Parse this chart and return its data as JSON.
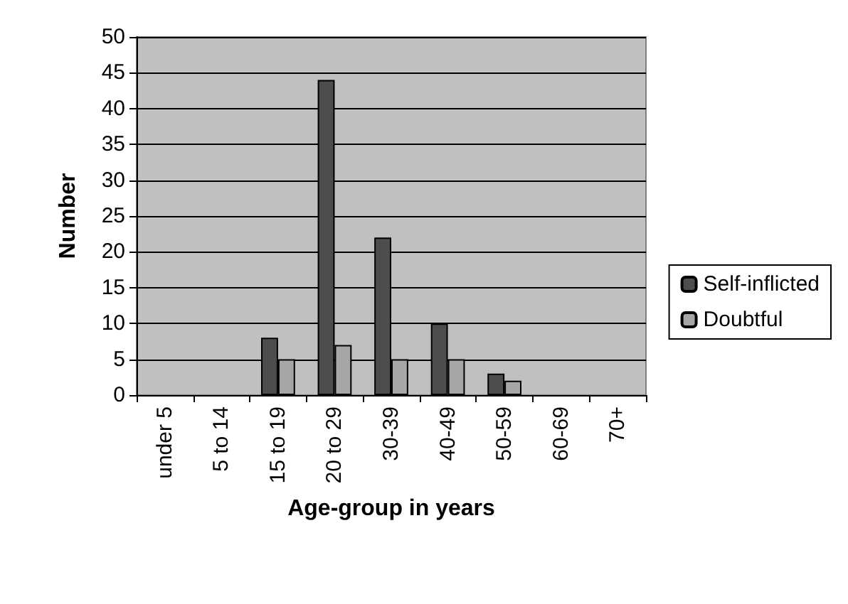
{
  "chart_data": {
    "type": "bar",
    "xlabel": "Age-group in years",
    "ylabel": "Number",
    "categories": [
      "under 5",
      "5 to 14",
      "15 to 19",
      "20 to 29",
      "30-39",
      "40-49",
      "50-59",
      "60-69",
      "70+"
    ],
    "series": [
      {
        "name": "Self-inflicted",
        "color": "#4d4d4d",
        "values": [
          0,
          0,
          8,
          44,
          22,
          10,
          3,
          0,
          0
        ]
      },
      {
        "name": "Doubtful",
        "color": "#a6a6a6",
        "values": [
          0,
          0,
          5,
          7,
          5,
          5,
          2,
          0,
          0
        ]
      }
    ],
    "ylim": [
      0,
      50
    ],
    "yticks": [
      0,
      5,
      10,
      15,
      20,
      25,
      30,
      35,
      40,
      45,
      50
    ],
    "grid": "y",
    "legend": "right"
  }
}
